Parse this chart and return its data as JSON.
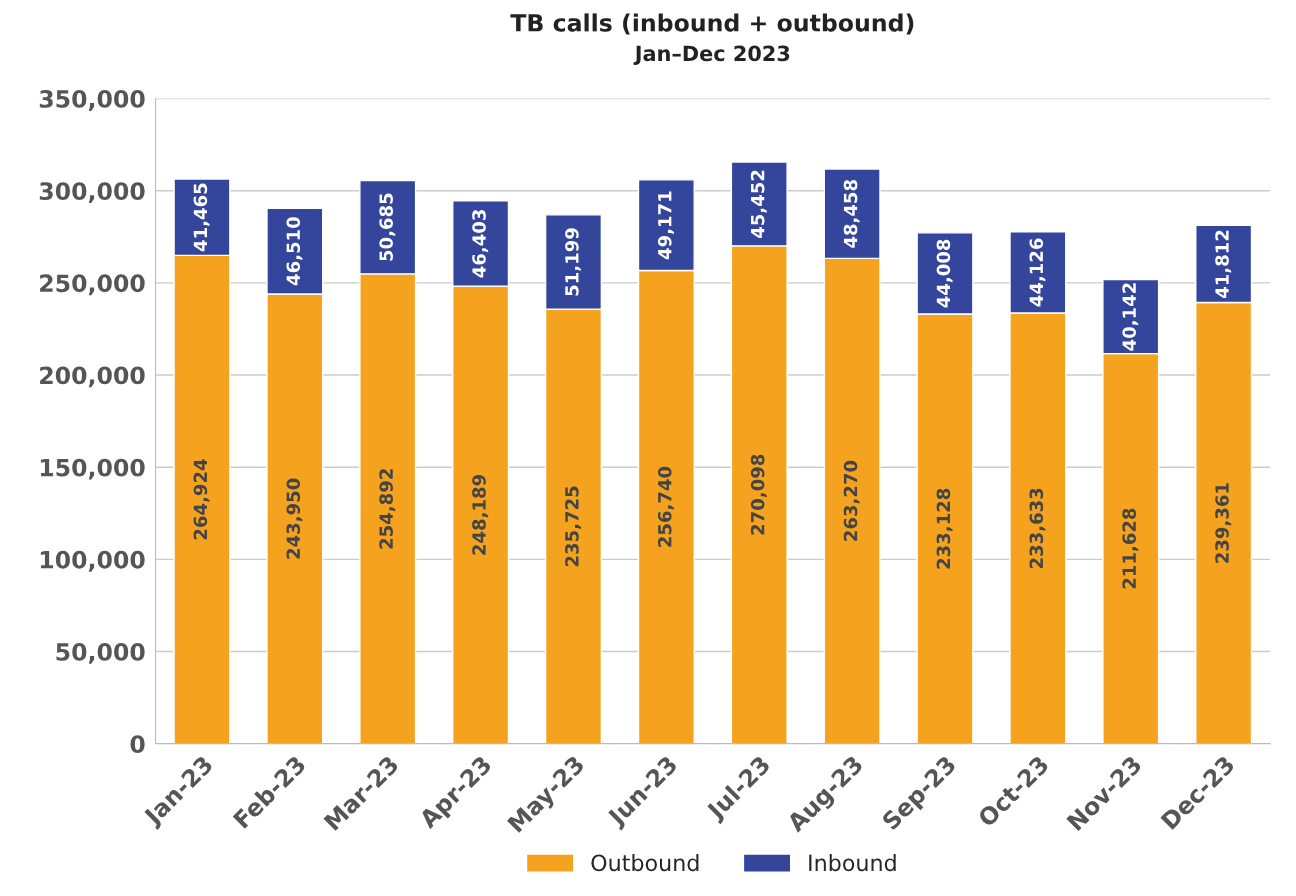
{
  "chart_data": {
    "type": "bar",
    "title": "TB calls (inbound + outbound)",
    "subtitle": "Jan–Dec 2023",
    "categories": [
      "Jan-23",
      "Feb-23",
      "Mar-23",
      "Apr-23",
      "May-23",
      "Jun-23",
      "Jul-23",
      "Aug-23",
      "Sep-23",
      "Oct-23",
      "Nov-23",
      "Dec-23"
    ],
    "series": [
      {
        "name": "Outbound",
        "color": "#f5a31f",
        "values": [
          264924,
          243950,
          254892,
          248189,
          235725,
          256740,
          270098,
          263270,
          233128,
          233633,
          211628,
          239361
        ],
        "value_labels": [
          "264,924",
          "243,950",
          "254,892",
          "248,189",
          "235,725",
          "256,740",
          "270,098",
          "263,270",
          "233,128",
          "233,633",
          "211,628",
          "239,361"
        ]
      },
      {
        "name": "Inbound",
        "color": "#34459c",
        "values": [
          41465,
          46510,
          50685,
          46403,
          51199,
          49171,
          45452,
          48458,
          44008,
          44126,
          40142,
          41812
        ],
        "value_labels": [
          "41,465",
          "46,510",
          "50,685",
          "46,403",
          "51,199",
          "49,171",
          "45,452",
          "48,458",
          "44,008",
          "44,126",
          "40,142",
          "41,812"
        ]
      }
    ],
    "stacked": true,
    "ylim": [
      0,
      350000
    ],
    "yticks": [
      {
        "value": 0,
        "label": "0"
      },
      {
        "value": 50000,
        "label": "50,000"
      },
      {
        "value": 100000,
        "label": "100,000"
      },
      {
        "value": 150000,
        "label": "150,000"
      },
      {
        "value": 200000,
        "label": "200,000"
      },
      {
        "value": 250000,
        "label": "250,000"
      },
      {
        "value": 300000,
        "label": "300,000"
      },
      {
        "value": 350000,
        "label": "350,000"
      }
    ],
    "grid": "y",
    "legend": "bottom"
  }
}
